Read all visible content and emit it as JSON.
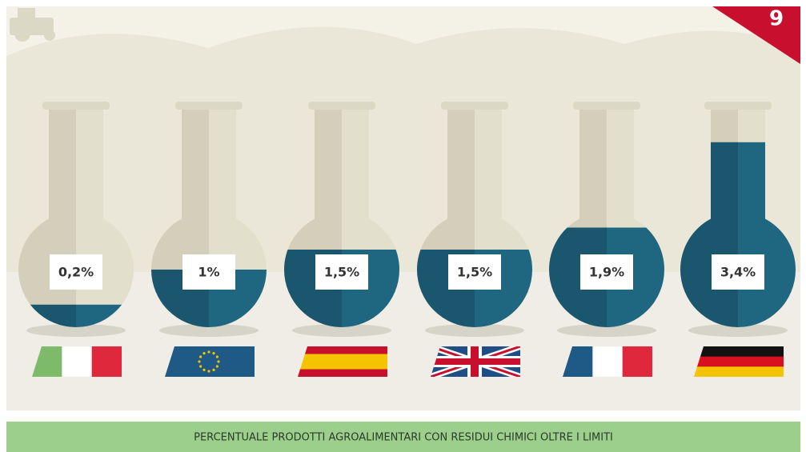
{
  "chart_data": {
    "type": "flask",
    "title": "PERCENTUALE PRODOTTI AGROALIMENTARI CON RESIDUI CHIMICI OLTRE I LIMITI",
    "annotation": "9",
    "categories": [
      null,
      null,
      null,
      null,
      null,
      null
    ],
    "values": [
      0.2,
      1,
      1.5,
      1.5,
      1.9,
      3.4
    ],
    "value_labels": [
      "0,2%",
      "1%",
      "1,5%",
      "1,5%",
      "1,9%",
      "3,4%"
    ],
    "color": "#1f6680"
  }
}
